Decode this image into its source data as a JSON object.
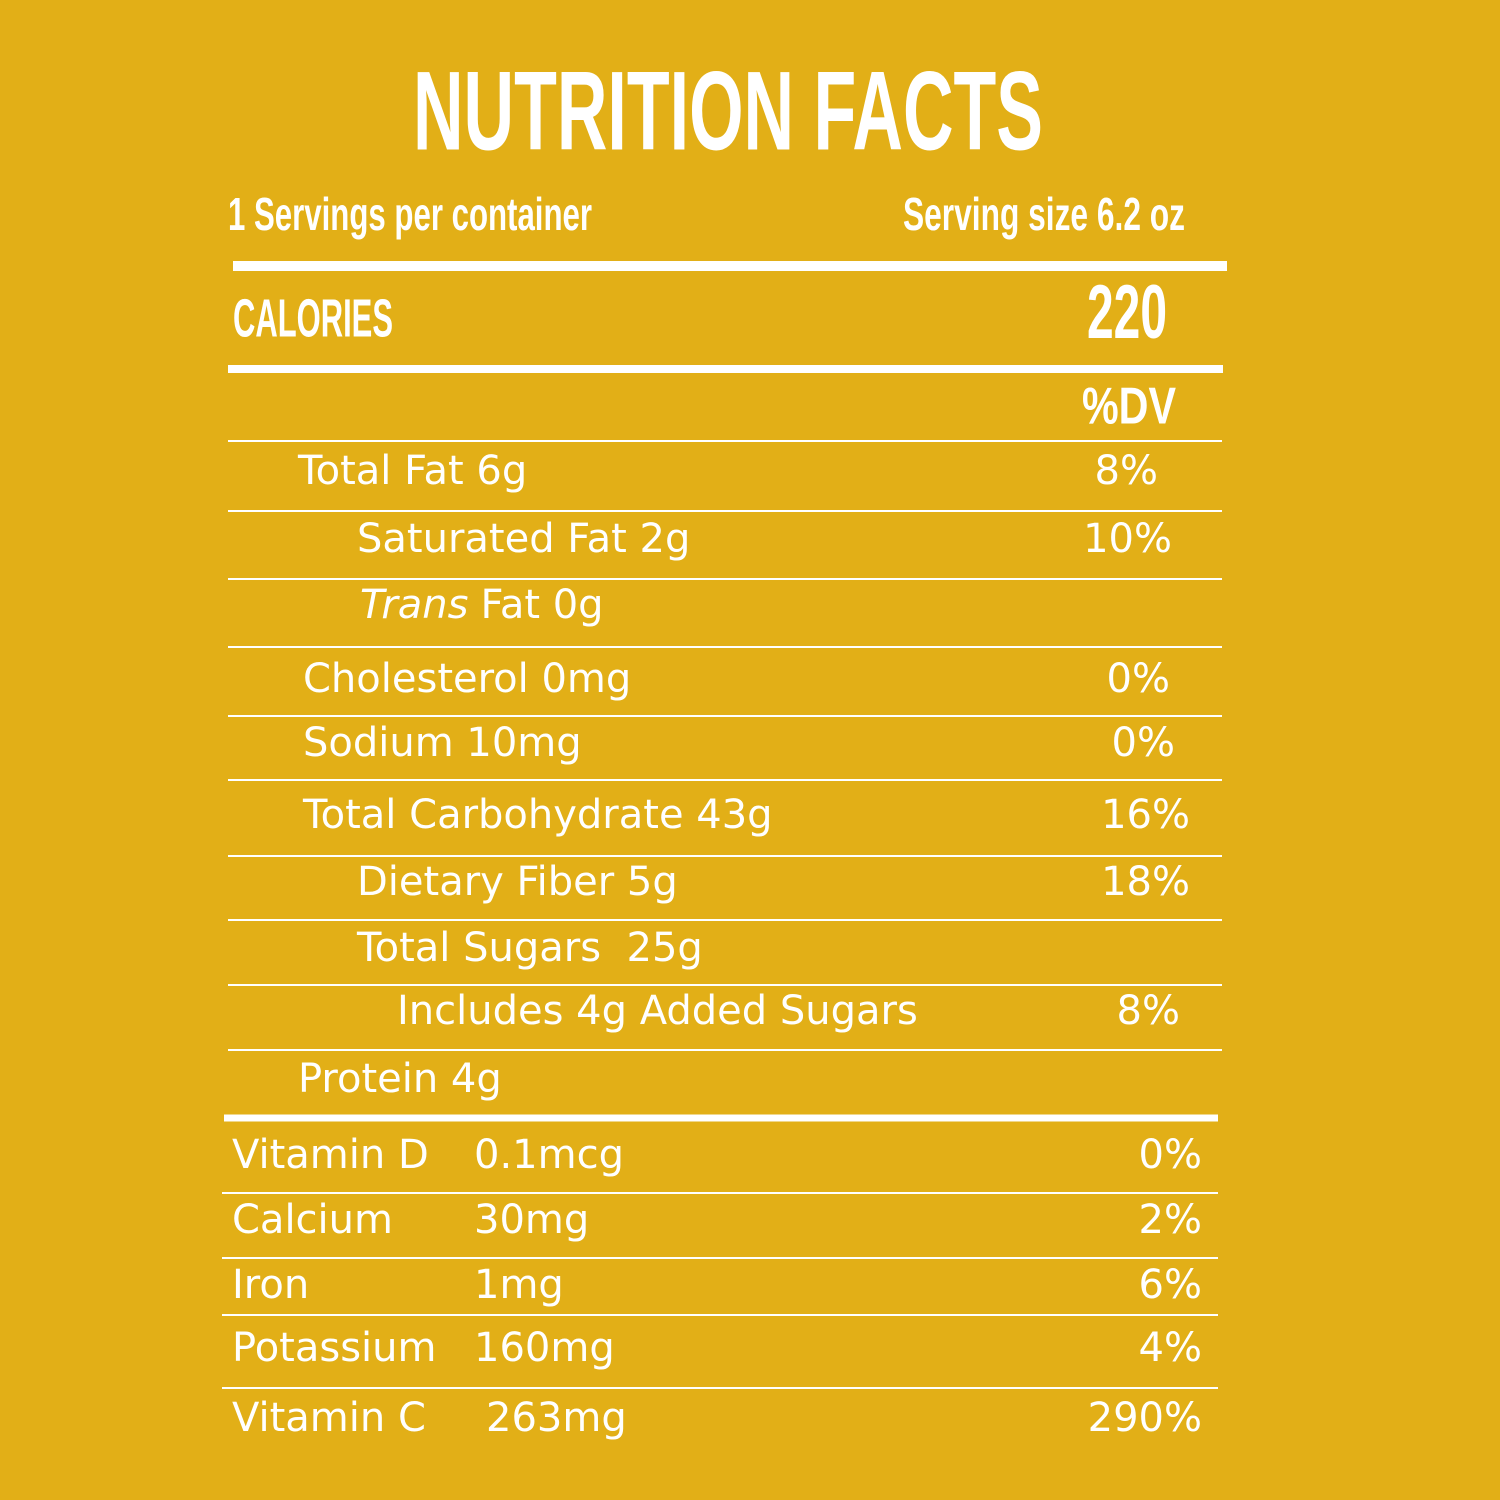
{
  "header": {
    "title": "NUTRITION FACTS",
    "servings": "1 Servings per container",
    "serving_size": "Serving size 6.2 oz"
  },
  "calories": {
    "label": "CALORIES",
    "value": "220"
  },
  "dv_header": "%DV",
  "nutrients": [
    {
      "label": "Total Fat 6g",
      "dv": "8%"
    },
    {
      "label": "Saturated Fat 2g",
      "dv": "10%"
    },
    {
      "label_italic": "Trans",
      "label": "Fat 0g"
    },
    {
      "label": "Cholesterol 0mg",
      "dv": "0%"
    },
    {
      "label": "Sodium 10mg",
      "dv": "0%"
    },
    {
      "label": "Total Carbohydrate 43g",
      "dv": "16%"
    },
    {
      "label": "Dietary Fiber 5g",
      "dv": "18%"
    },
    {
      "label": "Total Sugars  25g"
    },
    {
      "label": "Includes 4g Added Sugars",
      "dv": "8%"
    },
    {
      "label": "Protein 4g"
    }
  ],
  "vitamins": [
    {
      "name": "Vitamin D",
      "amount": "0.1mcg",
      "dv": "0%"
    },
    {
      "name": "Calcium",
      "amount": "30mg",
      "dv": "2%"
    },
    {
      "name": "Iron",
      "amount": "1mg",
      "dv": "6%"
    },
    {
      "name": "Potassium",
      "amount": "160mg",
      "dv": "4%"
    },
    {
      "name": "Vitamin C",
      "amount": "263mg",
      "dv": "290%"
    }
  ]
}
